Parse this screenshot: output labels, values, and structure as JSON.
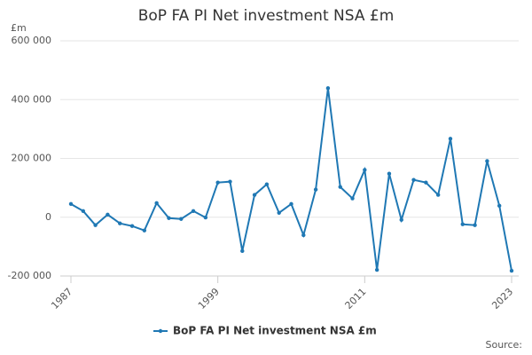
{
  "chart_data": {
    "type": "line",
    "title": "BoP FA PI Net investment NSA £m",
    "y_unit": "£m",
    "source": "Source:",
    "x": [
      1987,
      1988,
      1989,
      1990,
      1991,
      1992,
      1993,
      1994,
      1995,
      1996,
      1997,
      1998,
      1999,
      2000,
      2001,
      2002,
      2003,
      2004,
      2005,
      2006,
      2007,
      2008,
      2009,
      2010,
      2011,
      2012,
      2013,
      2014,
      2015,
      2016,
      2017,
      2018,
      2019,
      2020,
      2021,
      2022,
      2023
    ],
    "series": [
      {
        "name": "BoP FA PI Net investment NSA £m",
        "color": "#1f78b4",
        "values": [
          45000,
          21000,
          -27000,
          9000,
          -21000,
          -30000,
          -45000,
          48000,
          -3000,
          -6000,
          21000,
          -1000,
          118000,
          121000,
          -115000,
          76000,
          112000,
          15000,
          45000,
          -61000,
          94000,
          439000,
          103000,
          64000,
          161000,
          -179000,
          148000,
          -9000,
          127000,
          118000,
          76000,
          267000,
          -24000,
          -27000,
          191000,
          39000,
          -182000
        ]
      }
    ],
    "xlim": [
      1987,
      2023
    ],
    "xticks": [
      1987,
      1999,
      2011,
      2023
    ],
    "ylim": [
      -200000,
      600000
    ],
    "yticks": [
      {
        "value": -200000,
        "label": "-200 000"
      },
      0,
      {
        "value": 200000,
        "label": "200 000"
      },
      {
        "value": 400000,
        "label": "400 000"
      },
      {
        "value": 600000,
        "label": "600 000"
      }
    ],
    "grid": true
  }
}
